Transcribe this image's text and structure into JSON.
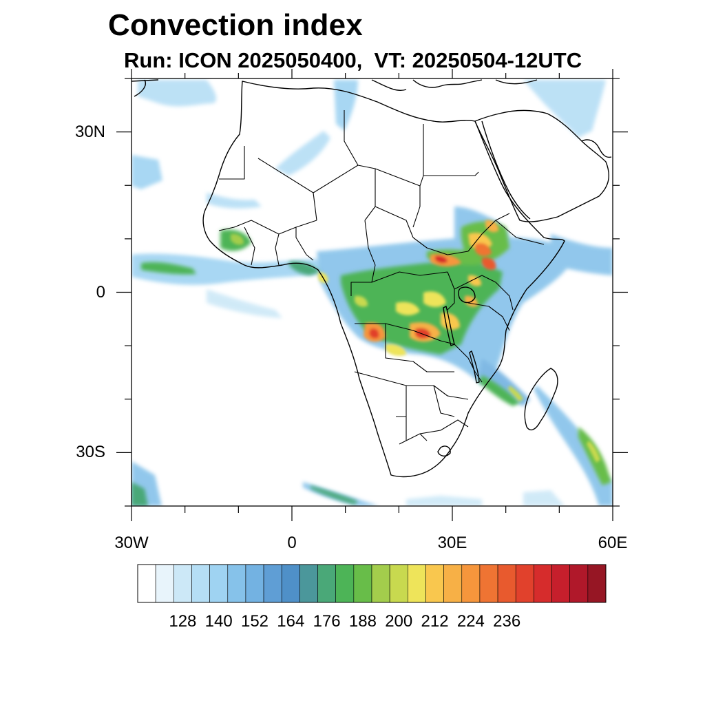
{
  "title": "Convection index",
  "subtitle": "Run: ICON 2025050400,  VT: 20250504-12UTC",
  "map": {
    "lon_range": [
      -30,
      60
    ],
    "lat_range": [
      -40,
      40
    ],
    "lat_ticks": [
      {
        "value": 30,
        "label": "30N"
      },
      {
        "value": 0,
        "label": "0"
      },
      {
        "value": -30,
        "label": "30S"
      }
    ],
    "lon_ticks": [
      {
        "value": -30,
        "label": "30W"
      },
      {
        "value": 0,
        "label": "0"
      },
      {
        "value": 30,
        "label": "30E"
      },
      {
        "value": 60,
        "label": "60E"
      }
    ]
  },
  "colorbar": {
    "labels": [
      "128",
      "140",
      "152",
      "164",
      "176",
      "188",
      "200",
      "212",
      "224",
      "236"
    ],
    "colors": [
      "#ffffff",
      "#e8f4fb",
      "#cce8f7",
      "#b5def5",
      "#9fd3f2",
      "#86c2ea",
      "#73b2e2",
      "#5f9ed5",
      "#4f90c8",
      "#4b979b",
      "#4aa878",
      "#4db457",
      "#68bd49",
      "#a3cd4c",
      "#c8d94f",
      "#eee45a",
      "#f9c74e",
      "#f7b046",
      "#f6963c",
      "#ef7433",
      "#e85a2e",
      "#e1412c",
      "#d62c2c",
      "#c61f2c",
      "#b0182a",
      "#961624"
    ]
  }
}
